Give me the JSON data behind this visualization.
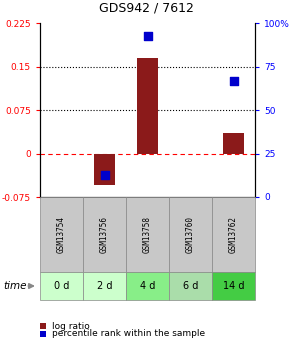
{
  "title": "GDS942 / 7612",
  "samples": [
    "GSM13754",
    "GSM13756",
    "GSM13758",
    "GSM13760",
    "GSM13762"
  ],
  "time_labels": [
    "0 d",
    "2 d",
    "4 d",
    "6 d",
    "14 d"
  ],
  "log_ratios": [
    0.0,
    -0.055,
    0.165,
    0.0,
    0.035
  ],
  "percentile_ranks": [
    null,
    12.5,
    93.0,
    null,
    67.0
  ],
  "ylim_left": [
    -0.075,
    0.225
  ],
  "ylim_right": [
    0,
    100
  ],
  "yticks_left": [
    -0.075,
    0.0,
    0.075,
    0.15,
    0.225
  ],
  "yticks_right": [
    0,
    25,
    50,
    75,
    100
  ],
  "ytick_labels_left": [
    "-0.075",
    "0",
    "0.075",
    "0.15",
    "0.225"
  ],
  "ytick_labels_right": [
    "0",
    "25",
    "50",
    "75",
    "100%"
  ],
  "hlines_dotted": [
    0.075,
    0.15
  ],
  "hline_dashed": 0.0,
  "bar_color": "#8B1A1A",
  "dot_color": "#0000CC",
  "bg_plot": "#FFFFFF",
  "bg_sample_box": "#C8C8C8",
  "bg_time_box_0": "#CCFFCC",
  "bg_time_box_1": "#CCFFCC",
  "bg_time_box_2": "#88EE88",
  "bg_time_box_3": "#AADDAA",
  "bg_time_box_4": "#44CC44",
  "time_label": "time",
  "legend_log": "log ratio",
  "legend_pct": "percentile rank within the sample",
  "bar_width": 0.5,
  "dot_size": 35
}
